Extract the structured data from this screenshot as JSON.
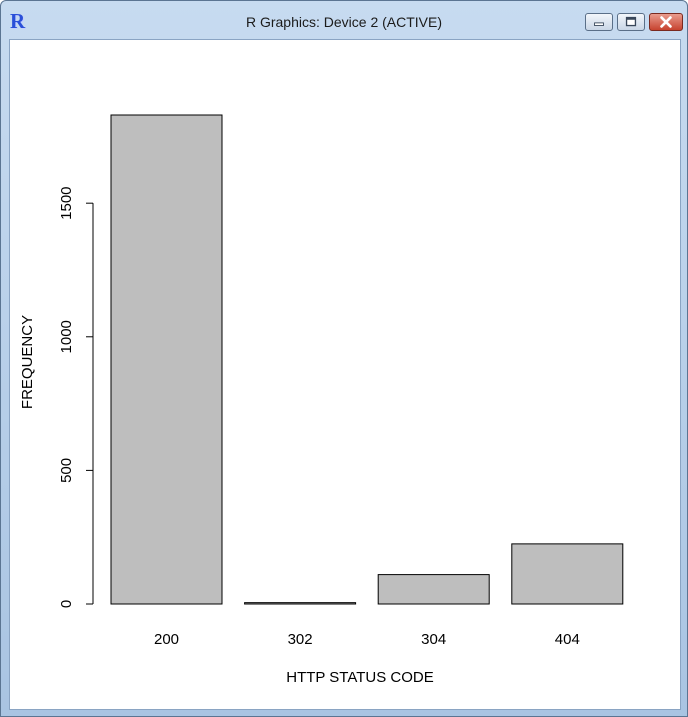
{
  "window": {
    "title": "R Graphics: Device 2 (ACTIVE)",
    "app_icon_letter": "R",
    "controls": [
      "minimize-icon",
      "maximize-icon",
      "close-icon"
    ]
  },
  "chart_data": {
    "type": "bar",
    "categories": [
      "200",
      "302",
      "304",
      "404"
    ],
    "values": [
      1830,
      5,
      110,
      225
    ],
    "title": "",
    "xlabel": "HTTP STATUS CODE",
    "ylabel": "FREQUENCY",
    "ylim": [
      0,
      1830
    ],
    "yticks": [
      0,
      500,
      1000,
      1500
    ],
    "grid": false,
    "bar_color": "#bebebe",
    "bar_edge_color": "#000000"
  }
}
